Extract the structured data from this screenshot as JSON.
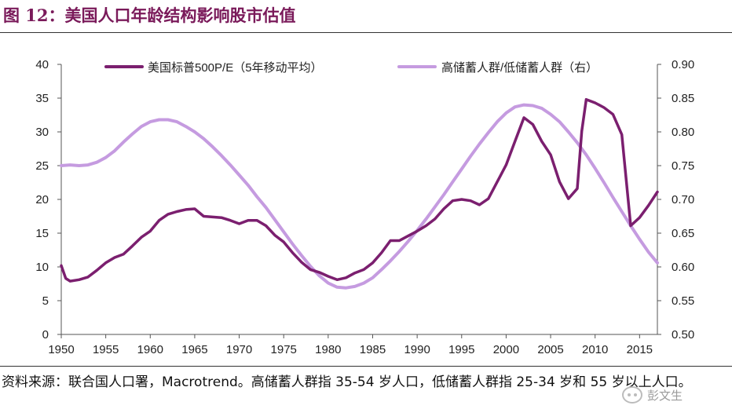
{
  "header": {
    "title": "图 12：美国人口年龄结构影响股市估值"
  },
  "source": {
    "text": "资料来源：联合国人口署，Macrotrend。高储蓄人群指 35-54 岁人口，低储蓄人群指 25-34 岁和 55 岁以上人口。"
  },
  "watermark": {
    "text": "彭文生"
  },
  "chart_data": {
    "type": "line",
    "x_ticks": [
      "1950",
      "1955",
      "1960",
      "1965",
      "1970",
      "1975",
      "1980",
      "1985",
      "1990",
      "1995",
      "2000",
      "2005",
      "2010",
      "2015"
    ],
    "xlim": [
      1950,
      2017
    ],
    "y_left": {
      "ticks": [
        "0",
        "5",
        "10",
        "15",
        "20",
        "25",
        "30",
        "35",
        "40"
      ],
      "lim": [
        0,
        40
      ]
    },
    "y_right": {
      "ticks": [
        "0.50",
        "0.55",
        "0.60",
        "0.65",
        "0.70",
        "0.75",
        "0.80",
        "0.85",
        "0.90"
      ],
      "lim": [
        0.5,
        0.9
      ]
    },
    "legend_position": "top",
    "series": [
      {
        "name": "美国标普500P/E（5年移动平均）",
        "axis": "left",
        "color": "#7b1f6f",
        "x": [
          1950,
          1950.5,
          1951,
          1952,
          1953,
          1954,
          1955,
          1956,
          1957,
          1958,
          1959,
          1960,
          1961,
          1962,
          1963,
          1964,
          1965,
          1966,
          1967,
          1968,
          1969,
          1970,
          1971,
          1972,
          1973,
          1974,
          1975,
          1976,
          1977,
          1978,
          1979,
          1980,
          1981,
          1982,
          1983,
          1984,
          1985,
          1986,
          1987,
          1988,
          1989,
          1990,
          1991,
          1992,
          1993,
          1994,
          1995,
          1996,
          1997,
          1998,
          1999,
          2000,
          2001,
          2002,
          2003,
          2004,
          2005,
          2006,
          2007,
          2008,
          2008.5,
          2009,
          2010,
          2011,
          2012,
          2013,
          2014,
          2015,
          2016,
          2017
        ],
        "values": [
          10.2,
          8.3,
          7.9,
          8.1,
          8.5,
          9.5,
          10.6,
          11.4,
          11.9,
          13.1,
          14.4,
          15.3,
          16.9,
          17.8,
          18.2,
          18.5,
          18.6,
          17.5,
          17.4,
          17.3,
          16.9,
          16.4,
          16.9,
          16.9,
          16.1,
          14.7,
          13.7,
          12.1,
          10.7,
          9.6,
          9.2,
          8.6,
          8.1,
          8.4,
          9.1,
          9.6,
          10.6,
          12.1,
          13.9,
          13.9,
          14.6,
          15.3,
          16.1,
          17.1,
          18.6,
          19.8,
          20.0,
          19.8,
          19.2,
          20.1,
          22.6,
          25.1,
          28.6,
          32.1,
          31.1,
          28.6,
          26.6,
          22.6,
          20.1,
          21.6,
          30.1,
          34.8,
          34.3,
          33.6,
          32.6,
          29.6,
          16.1,
          17.3,
          19.1,
          21.1
        ]
      },
      {
        "name": "高储蓄人群/低储蓄人群（右）",
        "axis": "right",
        "color": "#c59be0",
        "x": [
          1950,
          1951,
          1952,
          1953,
          1954,
          1955,
          1956,
          1957,
          1958,
          1959,
          1960,
          1961,
          1962,
          1963,
          1964,
          1965,
          1966,
          1967,
          1968,
          1969,
          1970,
          1971,
          1972,
          1973,
          1974,
          1975,
          1976,
          1977,
          1978,
          1979,
          1980,
          1981,
          1982,
          1983,
          1984,
          1985,
          1986,
          1987,
          1988,
          1989,
          1990,
          1991,
          1992,
          1993,
          1994,
          1995,
          1996,
          1997,
          1998,
          1999,
          2000,
          2001,
          2002,
          2003,
          2004,
          2005,
          2006,
          2007,
          2008,
          2009,
          2010,
          2011,
          2012,
          2013,
          2014,
          2015,
          2016,
          2017
        ],
        "values": [
          0.75,
          0.751,
          0.75,
          0.751,
          0.755,
          0.762,
          0.772,
          0.785,
          0.797,
          0.808,
          0.815,
          0.818,
          0.818,
          0.815,
          0.808,
          0.8,
          0.79,
          0.778,
          0.765,
          0.751,
          0.736,
          0.721,
          0.704,
          0.688,
          0.67,
          0.652,
          0.634,
          0.617,
          0.601,
          0.587,
          0.576,
          0.57,
          0.569,
          0.571,
          0.576,
          0.584,
          0.596,
          0.609,
          0.623,
          0.638,
          0.654,
          0.671,
          0.689,
          0.707,
          0.726,
          0.745,
          0.764,
          0.782,
          0.799,
          0.815,
          0.828,
          0.837,
          0.84,
          0.839,
          0.835,
          0.826,
          0.815,
          0.8,
          0.784,
          0.766,
          0.746,
          0.725,
          0.703,
          0.682,
          0.661,
          0.641,
          0.622,
          0.606
        ]
      }
    ]
  }
}
